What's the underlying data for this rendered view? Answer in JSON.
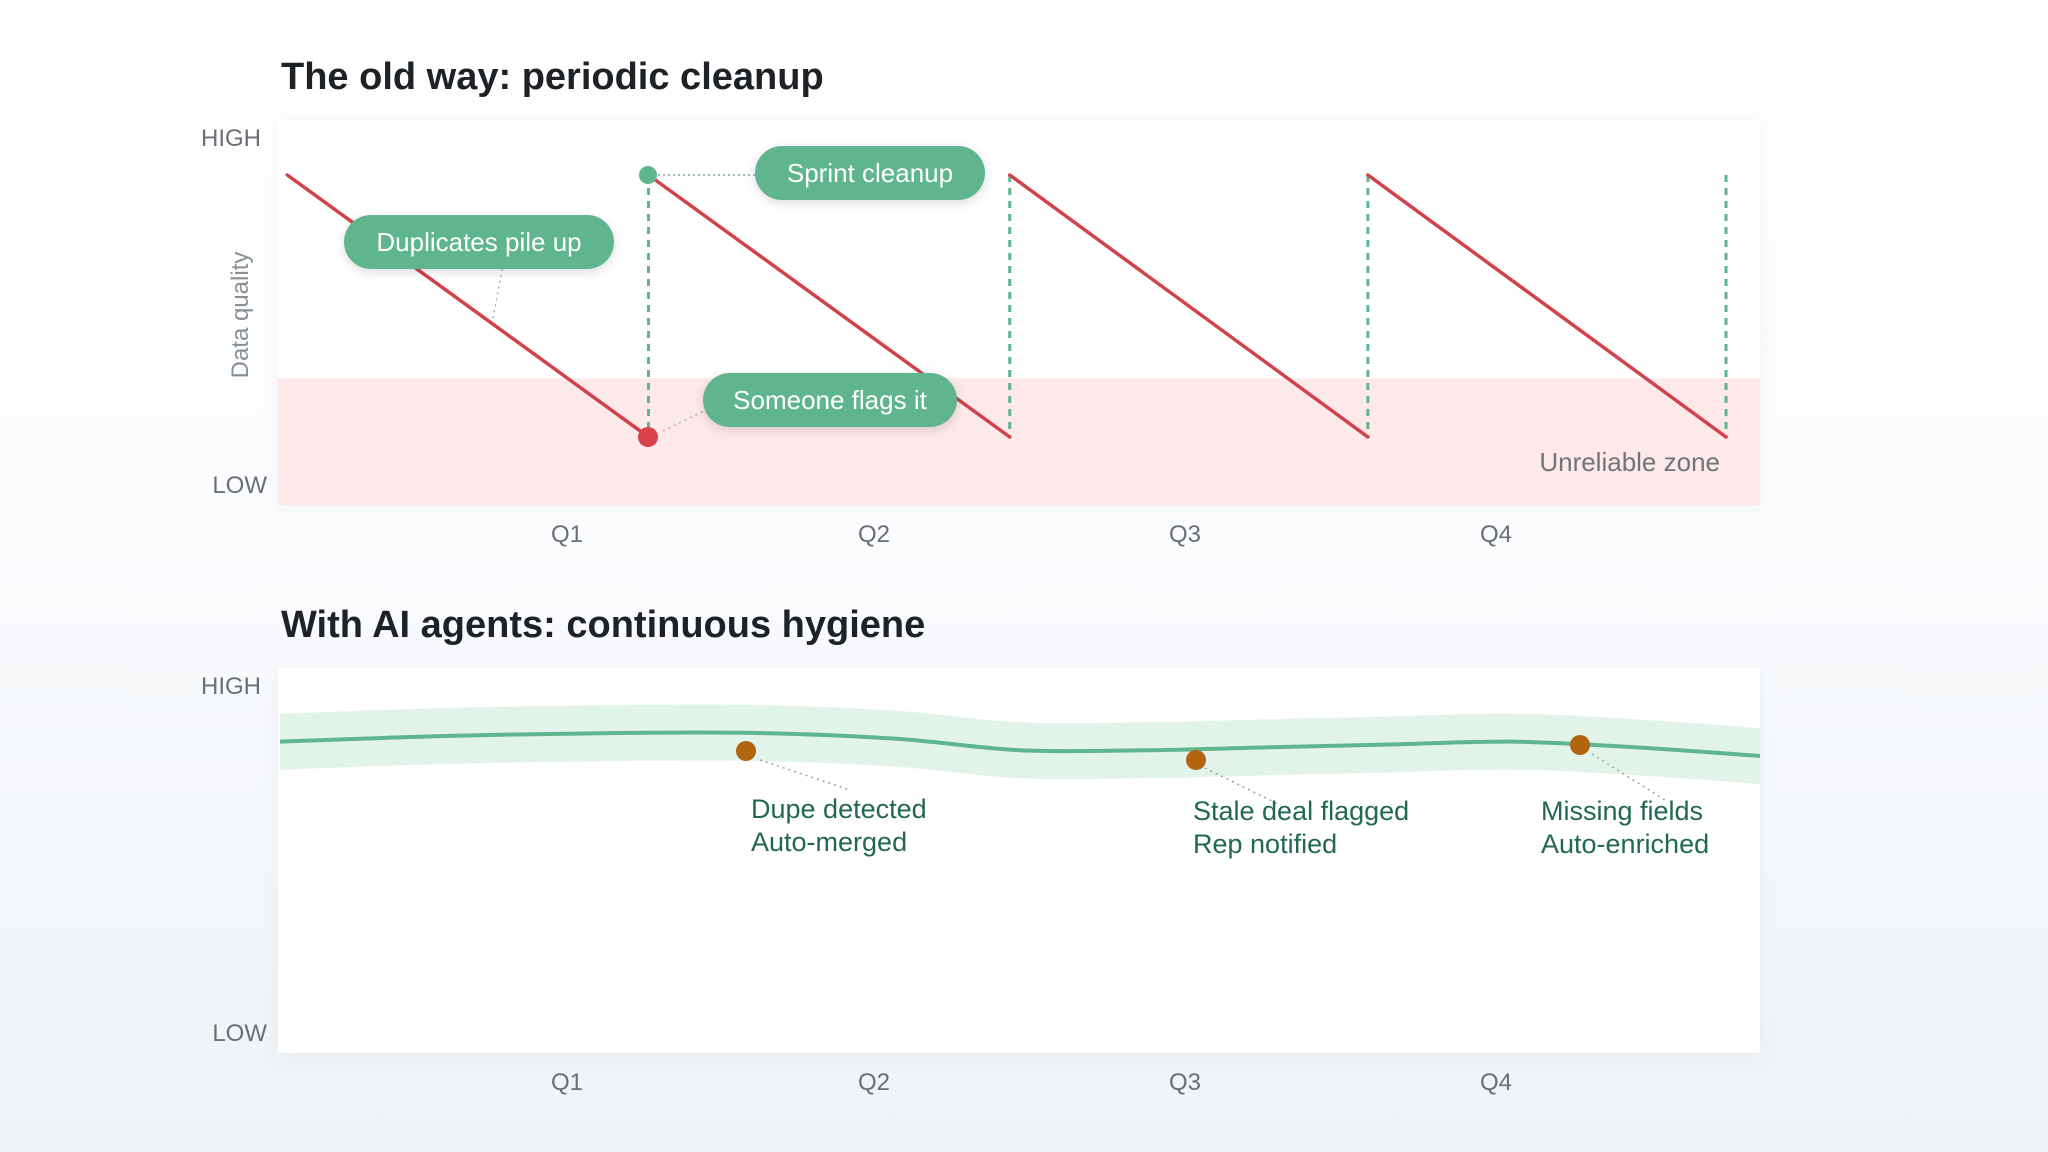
{
  "colors": {
    "decline_line": "#d0434b",
    "cleanup_green": "#5fb58d",
    "accent_dark_green": "#21694d",
    "band_fill": "#e2f4ea",
    "unreliable_zone": "#fde8ea",
    "event_dot": "#b2650f"
  },
  "chart_data": [
    {
      "type": "line",
      "title": "The old way: periodic cleanup",
      "ylabel": "Data quality",
      "y_ticks": [
        "HIGH",
        "LOW"
      ],
      "categories": [
        "Q1",
        "Q2",
        "Q3",
        "Q4"
      ],
      "xlim": [
        0,
        4.8
      ],
      "ylim": [
        0,
        1
      ],
      "series": [
        {
          "values": [
            [
              0.03,
              0.85
            ],
            [
              1.2,
              0.18
            ],
            [
              1.2,
              0.85
            ],
            [
              2.37,
              0.18
            ],
            [
              2.37,
              0.85
            ],
            [
              3.53,
              0.18
            ],
            [
              3.53,
              0.85
            ],
            [
              4.69,
              0.18
            ]
          ]
        }
      ],
      "cleanup_x": [
        1.2,
        2.37,
        3.53,
        4.69
      ],
      "unreliable_zone": {
        "y_range": [
          0,
          0.33
        ],
        "label": "Unreliable zone"
      },
      "callouts": {
        "duplicates": "Duplicates pile up",
        "sprint": "Sprint cleanup",
        "flags": "Someone flags it"
      }
    },
    {
      "type": "area",
      "title": "With AI agents: continuous hygiene",
      "y_ticks": [
        "HIGH",
        "LOW"
      ],
      "categories": [
        "Q1",
        "Q2",
        "Q3",
        "Q4"
      ],
      "xlim": [
        0,
        4.8
      ],
      "ylim": [
        0,
        1
      ],
      "series": [
        {
          "values": [
            [
              0.0,
              0.82
            ],
            [
              0.55,
              0.84
            ],
            [
              1.1,
              0.85
            ],
            [
              1.55,
              0.85
            ],
            [
              2.0,
              0.83
            ],
            [
              2.4,
              0.79
            ],
            [
              2.8,
              0.79
            ],
            [
              3.2,
              0.8
            ],
            [
              3.6,
              0.81
            ],
            [
              4.0,
              0.82
            ],
            [
              4.4,
              0.8
            ],
            [
              4.8,
              0.77
            ]
          ]
        }
      ],
      "band_halfwidth": 0.07,
      "events": [
        {
          "x": 1.52,
          "y": 0.78,
          "line1": "Dupe detected",
          "line2": "Auto-merged"
        },
        {
          "x": 2.98,
          "y": 0.76,
          "line1": "Stale deal flagged",
          "line2": "Rep notified"
        },
        {
          "x": 4.23,
          "y": 0.8,
          "line1": "Missing fields",
          "line2": "Auto-enriched"
        }
      ]
    }
  ]
}
